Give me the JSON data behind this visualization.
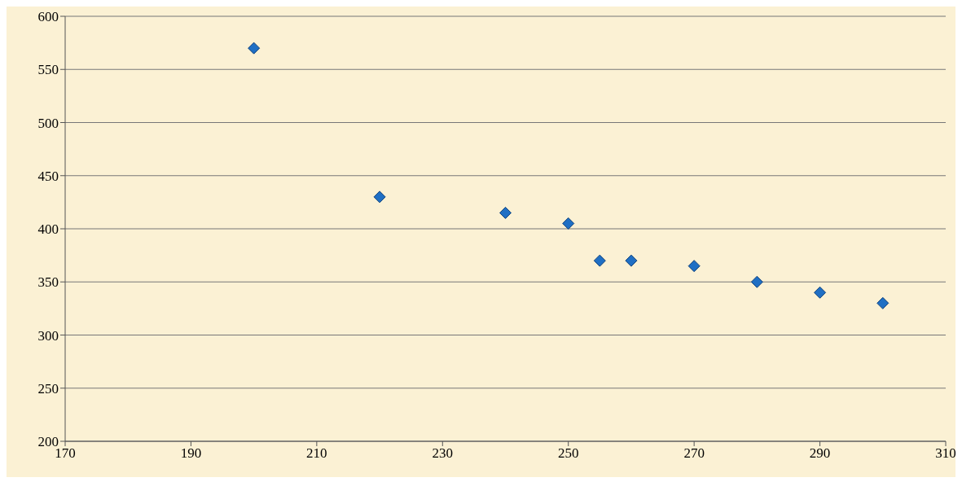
{
  "chart_data": {
    "type": "scatter",
    "x": [
      200,
      220,
      240,
      250,
      255,
      260,
      270,
      280,
      290,
      300
    ],
    "values": [
      570,
      430,
      415,
      405,
      370,
      370,
      365,
      350,
      340,
      330
    ],
    "color": "#1f6fc4",
    "marker": "diamond",
    "grid": "y",
    "xlim": [
      170,
      310
    ],
    "xticks": [
      170,
      190,
      210,
      230,
      250,
      270,
      290,
      310
    ],
    "ylim": [
      200,
      600
    ],
    "yticks": [
      200,
      250,
      300,
      350,
      400,
      450,
      500,
      550,
      600
    ]
  }
}
